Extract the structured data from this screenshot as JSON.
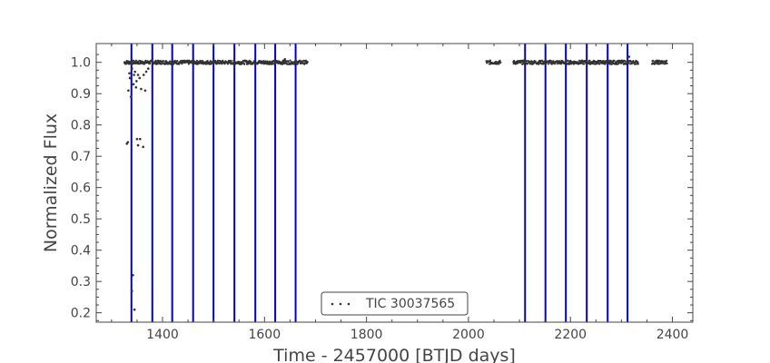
{
  "chart_data": {
    "type": "scatter",
    "xlabel": "Time - 2457000 [BTJD days]",
    "ylabel": "Normalized Flux",
    "xlim": [
      1270,
      2440
    ],
    "ylim": [
      0.17,
      1.06
    ],
    "xticks": [
      1400,
      1600,
      1800,
      2000,
      2200,
      2400
    ],
    "xtick_labels": [
      "1400",
      "1600",
      "1800",
      "2000",
      "2200",
      "2400"
    ],
    "yticks": [
      0.2,
      0.3,
      0.4,
      0.5,
      0.6,
      0.7,
      0.8,
      0.9,
      1.0
    ],
    "ytick_labels": [
      "0.2",
      "0.3",
      "0.4",
      "0.5",
      "0.6",
      "0.7",
      "0.8",
      "0.9",
      "1.0"
    ],
    "legend": {
      "label": "TIC 30037565",
      "position": "lower center"
    },
    "grid": false,
    "colors": {
      "points": "#333333",
      "lines": "#0000cc",
      "axes": "#444444"
    },
    "series": [
      {
        "name": "TIC 30037565",
        "segments": [
          {
            "x_start": 1325,
            "x_end": 1380,
            "y": 1.0
          },
          {
            "x_start": 1380,
            "x_end": 1685,
            "y": 1.0
          },
          {
            "x_start": 2035,
            "x_end": 2063,
            "y": 1.0
          },
          {
            "x_start": 2088,
            "x_end": 2333,
            "y": 1.0
          },
          {
            "x_start": 2360,
            "x_end": 2390,
            "y": 1.0
          }
        ],
        "outliers": [
          [
            1330,
            0.74
          ],
          [
            1332,
            0.745
          ],
          [
            1338,
            0.89
          ],
          [
            1340,
            0.27
          ],
          [
            1342,
            0.32
          ],
          [
            1345,
            0.21
          ],
          [
            1350,
            0.755
          ],
          [
            1352,
            0.735
          ],
          [
            1356,
            0.755
          ],
          [
            1362,
            0.73
          ],
          [
            1333,
            0.91
          ],
          [
            1336,
            0.95
          ],
          [
            1343,
            0.93
          ],
          [
            1346,
            0.97
          ],
          [
            1348,
            0.92
          ],
          [
            1352,
            0.96
          ],
          [
            1355,
            0.95
          ],
          [
            1358,
            0.915
          ],
          [
            1363,
            0.96
          ],
          [
            1366,
            0.91
          ],
          [
            1368,
            0.97
          ],
          [
            1335,
            0.965
          ],
          [
            1340,
            0.98
          ],
          [
            1344,
            0.96
          ],
          [
            1349,
            0.94
          ],
          [
            1372,
            0.98
          ],
          [
            2315,
            1.018
          ],
          [
            1640,
            1.01
          ]
        ]
      }
    ],
    "vertical_lines_x": [
      1339,
      1380,
      1419,
      1460,
      1500,
      1541,
      1582,
      1621,
      1661,
      2111,
      2151,
      2191,
      2232,
      2273,
      2312
    ]
  }
}
